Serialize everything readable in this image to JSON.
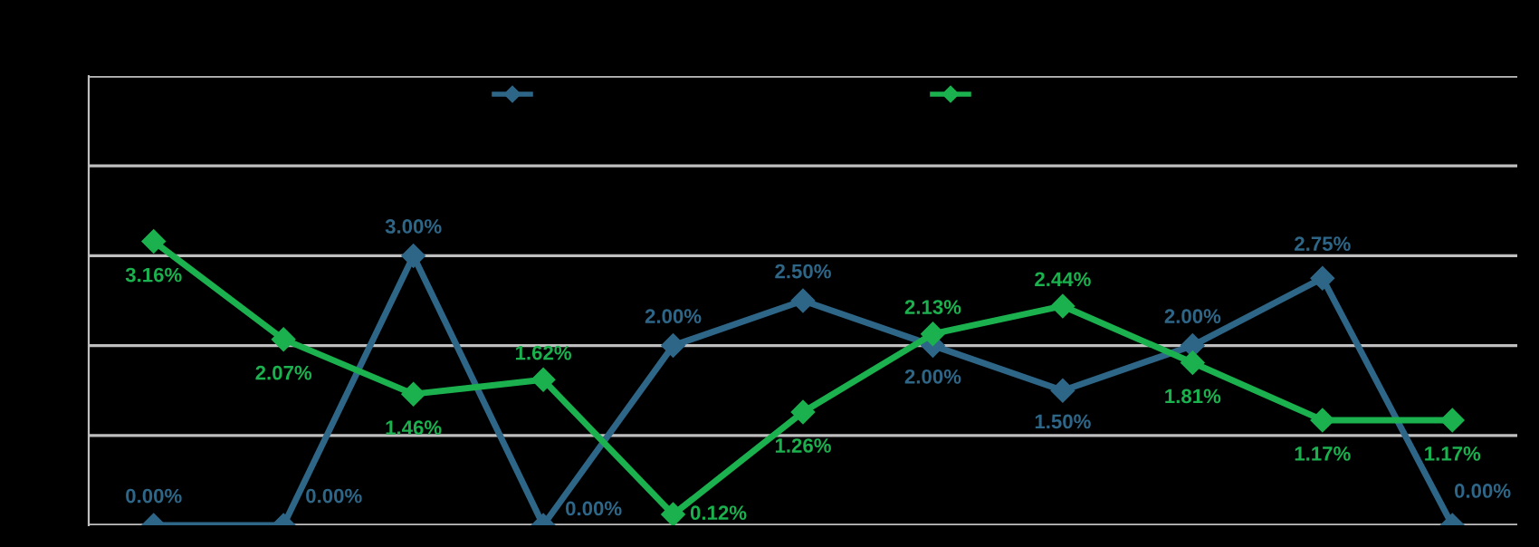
{
  "chart_data": {
    "type": "line",
    "categories": [
      null,
      null,
      null,
      null,
      null,
      null,
      null,
      null,
      null,
      null,
      null
    ],
    "series": [
      {
        "color": "#2e6688",
        "values": [
          0,
          0,
          3.0,
          0,
          2.0,
          2.5,
          2.0,
          1.5,
          2.0,
          2.75,
          0
        ],
        "value_labels": [
          "0.00%",
          "0.00%",
          "3.00%",
          "0.00%",
          "2.00%",
          "2.50%",
          "2.00%",
          "1.50%",
          "2.00%",
          "2.75%",
          "0.00%"
        ]
      },
      {
        "color": "#1ab14e",
        "values": [
          3.16,
          2.07,
          1.46,
          1.62,
          0.12,
          1.26,
          2.13,
          2.44,
          1.81,
          1.17,
          1.17
        ],
        "value_labels": [
          "3.16%",
          "2.07%",
          "1.46%",
          "1.62%",
          "0.12%",
          "1.26%",
          "2.13%",
          "2.44%",
          "1.81%",
          "1.17%",
          "1.17%"
        ]
      }
    ],
    "ylim": [
      0,
      5
    ],
    "yticks": [
      {
        "value": 0,
        "label": null
      },
      {
        "value": 1,
        "label": null
      },
      {
        "value": 2,
        "label": null
      },
      {
        "value": 3,
        "label": null
      },
      {
        "value": 4,
        "label": null
      },
      {
        "value": 5,
        "label": null
      }
    ],
    "grid": "y",
    "marker": "diamond",
    "line_style": "solid"
  }
}
